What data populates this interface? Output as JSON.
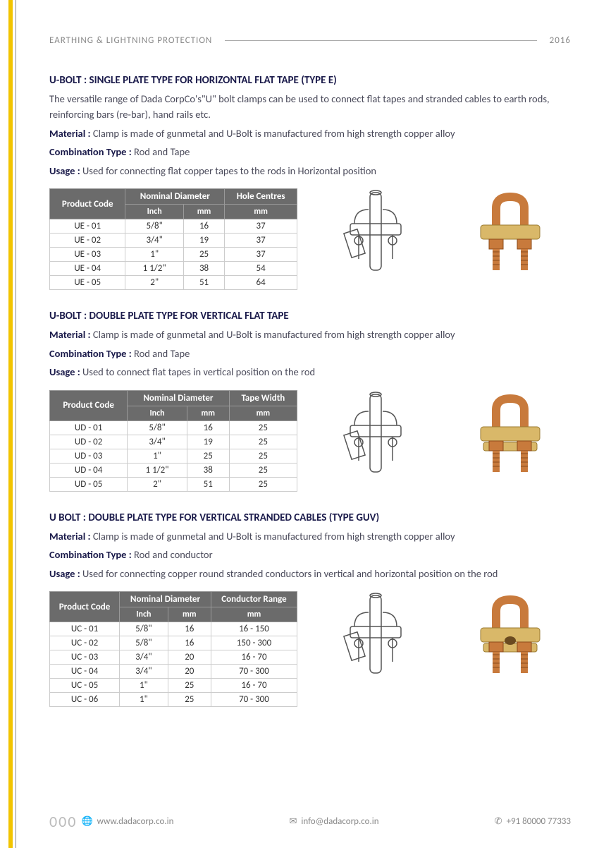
{
  "header": {
    "category": "EARTHING & LIGHTNING PROTECTION",
    "year": "2016"
  },
  "sections": [
    {
      "title": "U-BOLT : SINGLE PLATE TYPE FOR HORIZONTAL FLAT TAPE (TYPE E)",
      "intro": "The versatile range of Dada CorpCo's\"U\" bolt clamps can be used to connect flat tapes and stranded cables to earth rods, reinforcing bars (re-bar), hand rails etc.",
      "material_label": "Material : ",
      "material": "Clamp is made of gunmetal and U-Bolt is manufactured from high strength copper alloy",
      "combo_label": "Combination Type : ",
      "combo": "Rod and Tape",
      "usage_label": "Usage : ",
      "usage": "Used for connecting flat copper tapes to the rods in Horizontal position",
      "table": {
        "h_code": "Product Code",
        "h_nom": "Nominal Diameter",
        "h_extra": "Hole Centres",
        "h_inch": "Inch",
        "h_mm": "mm",
        "h_extra_mm": "mm",
        "rows": [
          {
            "code": "UE - 01",
            "inch": "5/8\"",
            "mm": "16",
            "extra": "37"
          },
          {
            "code": "UE - 02",
            "inch": "3/4\"",
            "mm": "19",
            "extra": "37"
          },
          {
            "code": "UE - 03",
            "inch": "1\"",
            "mm": "25",
            "extra": "37"
          },
          {
            "code": "UE - 04",
            "inch": "1 1/2\"",
            "mm": "38",
            "extra": "54"
          },
          {
            "code": "UE - 05",
            "inch": "2\"",
            "mm": "51",
            "extra": "64"
          }
        ]
      },
      "colors": {
        "copper": "#c87a3c",
        "brass": "#d9b869"
      }
    },
    {
      "title": "U-BOLT : DOUBLE PLATE TYPE FOR VERTICAL FLAT TAPE",
      "intro": "",
      "material_label": "Material : ",
      "material": "Clamp is made of gunmetal and U-Bolt is manufactured from high strength copper alloy",
      "combo_label": "Combination Type : ",
      "combo": "Rod and Tape",
      "usage_label": "Usage : ",
      "usage": "Used to connect flat tapes in vertical position on the rod",
      "table": {
        "h_code": "Product Code",
        "h_nom": "Nominal Diameter",
        "h_extra": "Tape Width",
        "h_inch": "Inch",
        "h_mm": "mm",
        "h_extra_mm": "mm",
        "rows": [
          {
            "code": "UD - 01",
            "inch": "5/8\"",
            "mm": "16",
            "extra": "25"
          },
          {
            "code": "UD - 02",
            "inch": "3/4\"",
            "mm": "19",
            "extra": "25"
          },
          {
            "code": "UD - 03",
            "inch": "1\"",
            "mm": "25",
            "extra": "25"
          },
          {
            "code": "UD - 04",
            "inch": "1 1/2\"",
            "mm": "38",
            "extra": "25"
          },
          {
            "code": "UD - 05",
            "inch": "2\"",
            "mm": "51",
            "extra": "25"
          }
        ]
      },
      "colors": {
        "copper": "#c87a3c",
        "brass": "#d9b869"
      }
    },
    {
      "title": "U BOLT : DOUBLE PLATE TYPE FOR VERTICAL STRANDED CABLES (TYPE GUV)",
      "intro": "",
      "material_label": "Material : ",
      "material": "Clamp is made of gunmetal and U-Bolt is manufactured from high strength copper alloy",
      "combo_label": "Combination Type : ",
      "combo": "Rod and conductor",
      "usage_label": "Usage : ",
      "usage": "Used for connecting copper round stranded conductors in vertical and horizontal position  on the rod",
      "table": {
        "h_code": "Product Code",
        "h_nom": "Nominal Diameter",
        "h_extra": "Conductor Range",
        "h_inch": "Inch",
        "h_mm": "mm",
        "h_extra_mm": "mm",
        "rows": [
          {
            "code": "UC - 01",
            "inch": "5/8\"",
            "mm": "16",
            "extra": "16 - 150"
          },
          {
            "code": "UC - 02",
            "inch": "5/8\"",
            "mm": "16",
            "extra": "150 - 300"
          },
          {
            "code": "UC - 03",
            "inch": "3/4\"",
            "mm": "20",
            "extra": "16 - 70"
          },
          {
            "code": "UC - 04",
            "inch": "3/4\"",
            "mm": "20",
            "extra": "70 - 300"
          },
          {
            "code": "UC - 05",
            "inch": "1\"",
            "mm": "25",
            "extra": "16 - 70"
          },
          {
            "code": "UC - 06",
            "inch": "1\"",
            "mm": "25",
            "extra": "70 - 300"
          }
        ]
      },
      "colors": {
        "copper": "#c87a3c",
        "brass": "#d9b869"
      }
    }
  ],
  "footer": {
    "page": "000",
    "web": "www.dadacorp.co.in",
    "email": "info@dadacorp.co.in",
    "phone": "+91 80000 77333"
  }
}
